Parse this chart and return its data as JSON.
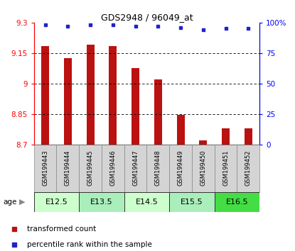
{
  "title": "GDS2948 / 96049_at",
  "samples": [
    "GSM199443",
    "GSM199444",
    "GSM199445",
    "GSM199446",
    "GSM199447",
    "GSM199448",
    "GSM199449",
    "GSM199450",
    "GSM199451",
    "GSM199452"
  ],
  "transformed_counts": [
    9.185,
    9.125,
    9.19,
    9.185,
    9.075,
    9.02,
    8.845,
    8.72,
    8.78,
    8.78
  ],
  "percentile_ranks": [
    98,
    97,
    98,
    98,
    97,
    97,
    96,
    94,
    95,
    95
  ],
  "y_min": 8.7,
  "y_max": 9.3,
  "y_ticks": [
    8.7,
    8.85,
    9.0,
    9.15,
    9.3
  ],
  "y_tick_labels": [
    "8.7",
    "8.85",
    "9",
    "9.15",
    "9.3"
  ],
  "right_y_ticks": [
    0,
    25,
    50,
    75,
    100
  ],
  "right_y_labels": [
    "0",
    "25",
    "50",
    "75",
    "100%"
  ],
  "bar_color": "#bb1111",
  "dot_color": "#2222cc",
  "bar_base": 8.7,
  "age_groups": [
    {
      "label": "E12.5",
      "start": 0,
      "end": 2,
      "color": "#ccffcc"
    },
    {
      "label": "E13.5",
      "start": 2,
      "end": 4,
      "color": "#aaeebb"
    },
    {
      "label": "E14.5",
      "start": 4,
      "end": 6,
      "color": "#ccffcc"
    },
    {
      "label": "E15.5",
      "start": 6,
      "end": 8,
      "color": "#aaeebb"
    },
    {
      "label": "E16.5",
      "start": 8,
      "end": 10,
      "color": "#44dd44"
    }
  ],
  "legend_items": [
    {
      "label": "transformed count",
      "color": "#bb1111"
    },
    {
      "label": "percentile rank within the sample",
      "color": "#2222cc"
    }
  ]
}
